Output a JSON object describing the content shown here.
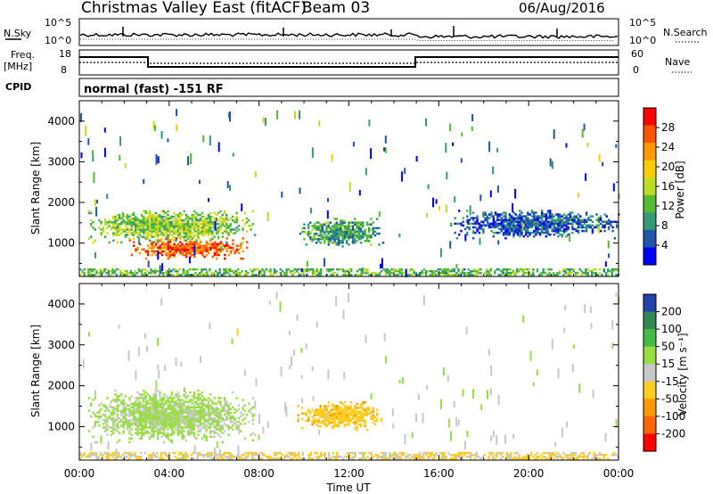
{
  "header": {
    "title": "Christmas Valley East (fitACF)",
    "beam": "Beam 03",
    "date": "06/Aug/2016"
  },
  "noise_panel": {
    "left_label": "N.Sky",
    "left_ticks": [
      "10^5",
      "10^0"
    ],
    "right_ticks": [
      "10^5",
      "10^0"
    ],
    "right_label": "N.Search"
  },
  "freq_panel": {
    "left_label_1": "Freq.",
    "left_label_2": "[MHz]",
    "left_ticks": [
      "18",
      "8"
    ],
    "right_ticks": [
      "60",
      "0"
    ],
    "right_label": "Nave"
  },
  "cpid_panel": {
    "label": "CPID",
    "mode_text": "normal (fast) -151 RF"
  },
  "chart_data": [
    {
      "type": "heatmap",
      "ylabel": "Slant Range [km]",
      "y_ticks": [
        "4000",
        "3000",
        "2000",
        "1000"
      ],
      "x_ticks": [
        "00:00",
        "04:00",
        "08:00",
        "12:00",
        "16:00",
        "20:00",
        "00:00"
      ],
      "colorbar": {
        "label": "Power [dB]",
        "ticks": [
          "28",
          "24",
          "20",
          "16",
          "12",
          "8",
          "4"
        ],
        "colors": [
          "#ff0000",
          "#ff5500",
          "#ff9900",
          "#ffcc00",
          "#bbdd22",
          "#55bb33",
          "#339977",
          "#2255aa",
          "#0000ff"
        ]
      },
      "regions": [
        {
          "t": [
            2.2,
            7.5
          ],
          "r": [
            600,
            1100
          ],
          "v": 26
        },
        {
          "t": [
            0.3,
            7.8
          ],
          "r": [
            1000,
            1800
          ],
          "v": 14
        },
        {
          "t": [
            9.7,
            13.5
          ],
          "r": [
            900,
            1600
          ],
          "v": 10
        },
        {
          "t": [
            0,
            24
          ],
          "r": [
            200,
            380
          ],
          "v": 12
        },
        {
          "t": [
            16.5,
            24
          ],
          "r": [
            1100,
            1800
          ],
          "v": 6
        }
      ]
    },
    {
      "type": "heatmap",
      "ylabel": "Slant Range [km]",
      "y_ticks": [
        "4000",
        "3000",
        "2000",
        "1000"
      ],
      "x_ticks": [
        "00:00",
        "04:00",
        "08:00",
        "12:00",
        "16:00",
        "20:00",
        "00:00"
      ],
      "xlabel": "Time UT",
      "colorbar": {
        "label": "Velocity [m s⁻¹]",
        "ticks": [
          "200",
          "100",
          "50",
          "15",
          "-15",
          "-50",
          "-100",
          "-200"
        ],
        "colors": [
          "#2244aa",
          "#338855",
          "#44bb44",
          "#99dd44",
          "#c8c8c8",
          "#ffcc22",
          "#ff9900",
          "#ff6600",
          "#ff0000"
        ]
      },
      "regions": [
        {
          "t": [
            0.3,
            7.8
          ],
          "r": [
            600,
            1900
          ],
          "v": 40
        },
        {
          "t": [
            9.7,
            13.5
          ],
          "r": [
            900,
            1600
          ],
          "v": -60
        },
        {
          "t": [
            0,
            24
          ],
          "r": [
            200,
            380
          ],
          "v": -30
        }
      ]
    }
  ]
}
